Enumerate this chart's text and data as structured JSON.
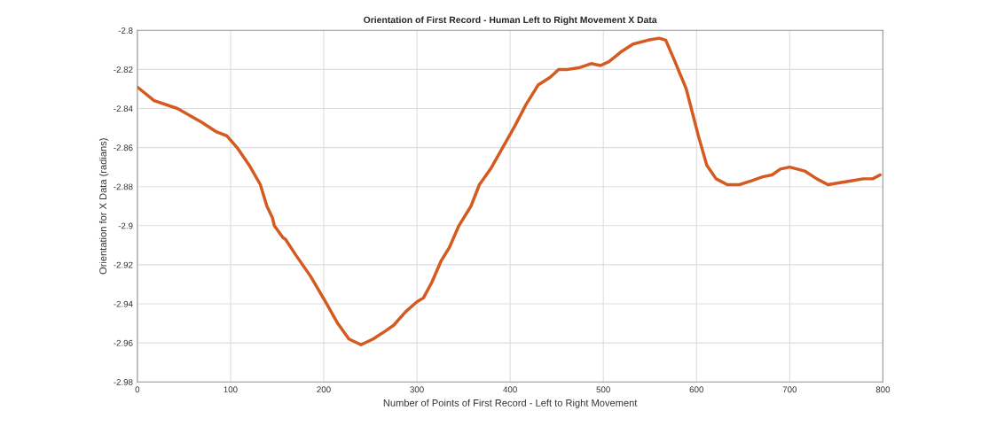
{
  "chart_data": {
    "type": "line",
    "title": "Orientation of First Record - Human Left to Right Movement X Data",
    "xlabel": "Number of Points of First Record - Left to Right Movement",
    "ylabel": "Orientation for X Data (radians)",
    "xlim": [
      0,
      800
    ],
    "xticks": [
      0,
      100,
      200,
      300,
      400,
      500,
      600,
      700,
      800
    ],
    "ylim": [
      -2.98,
      -2.8
    ],
    "yticks": [
      -2.98,
      -2.96,
      -2.94,
      -2.92,
      -2.9,
      -2.88,
      -2.86,
      -2.84,
      -2.82,
      -2.8
    ],
    "grid": true,
    "line_style": "solid",
    "series": [
      {
        "color": "#d45a1f",
        "x": [
          0,
          18,
          43,
          69,
          85,
          96,
          107,
          120,
          132,
          139,
          145,
          147,
          156,
          159,
          170,
          186,
          202,
          215,
          227,
          240,
          253,
          266,
          275,
          288,
          300,
          307,
          316,
          326,
          335,
          345,
          358,
          367,
          379,
          392,
          405,
          417,
          430,
          443,
          452,
          462,
          475,
          487,
          497,
          506,
          519,
          532,
          548,
          560,
          567,
          576,
          589,
          602,
          611,
          621,
          633,
          646,
          659,
          671,
          681,
          690,
          700,
          716,
          729,
          741,
          754,
          767,
          779,
          789,
          797
        ],
        "values": [
          -2.829,
          -2.836,
          -2.84,
          -2.847,
          -2.852,
          -2.854,
          -2.86,
          -2.869,
          -2.879,
          -2.89,
          -2.896,
          -2.9,
          -2.906,
          -2.907,
          -2.915,
          -2.926,
          -2.939,
          -2.95,
          -2.958,
          -2.961,
          -2.958,
          -2.954,
          -2.951,
          -2.944,
          -2.939,
          -2.937,
          -2.929,
          -2.918,
          -2.911,
          -2.9,
          -2.89,
          -2.879,
          -2.871,
          -2.86,
          -2.849,
          -2.838,
          -2.828,
          -2.824,
          -2.82,
          -2.82,
          -2.819,
          -2.817,
          -2.818,
          -2.816,
          -2.811,
          -2.807,
          -2.805,
          -2.804,
          -2.805,
          -2.815,
          -2.83,
          -2.854,
          -2.869,
          -2.876,
          -2.879,
          -2.879,
          -2.877,
          -2.875,
          -2.874,
          -2.871,
          -2.87,
          -2.872,
          -2.876,
          -2.879,
          -2.878,
          -2.877,
          -2.876,
          -2.876,
          -2.874
        ]
      }
    ]
  }
}
